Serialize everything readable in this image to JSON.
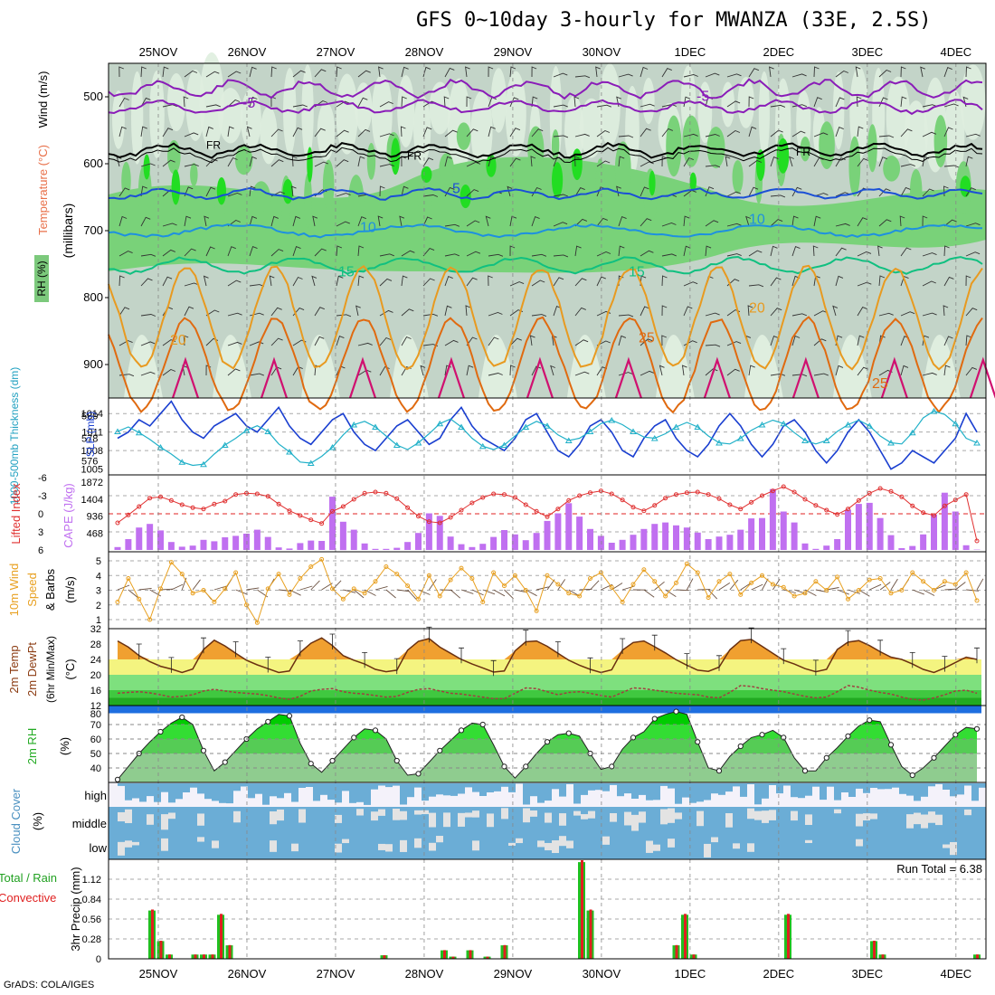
{
  "title": "GFS 0~10day 3-hourly for MWANZA (33E, 2.5S)",
  "credit": "GrADS: COLA/IGES",
  "chart_data": [
    {
      "panel": "upper-air",
      "type": "heatmap",
      "date_labels": [
        "25NOV",
        "26NOV",
        "27NOV",
        "28NOV",
        "29NOV",
        "30NOV",
        "1DEC",
        "2DEC",
        "3DEC",
        "4DEC"
      ],
      "ylabel_parts": [
        "RH (%)",
        "Temperature (°C)",
        "Wind (m/s)"
      ],
      "ylabel2": "(millibars)",
      "ytick_labels": [
        "500",
        "600",
        "700",
        "800",
        "900"
      ],
      "ylim": [
        450,
        950
      ],
      "contour_labels": [
        "-5",
        "-5",
        "FR",
        "FR",
        "FR",
        "5",
        "10",
        "10",
        "15",
        "15",
        "20",
        "20",
        "25",
        "25"
      ],
      "colors": {
        "rh_light": "#dfeedf",
        "rh_mid": "#c3d4c8",
        "rh_green": "#79d279",
        "rh_bright": "#22dd22",
        "minus5": "#8a1cb8",
        "freeze": "#000000",
        "t5": "#1a4fd6",
        "t10": "#1e90e0",
        "t15": "#10c080",
        "t20": "#e89a20",
        "t25": "#e06a10",
        "t30": "#d01070"
      }
    },
    {
      "panel": "thickness-slp",
      "type": "line",
      "ylabel_left": "1000-500mb Thickness (dm)",
      "ylabel_right": "SLP (mb)",
      "left_ticks": [
        "580",
        "578",
        "576"
      ],
      "right_ticks": [
        "1014",
        "1011",
        "1008",
        "1005"
      ],
      "series": [
        {
          "name": "SLP",
          "color": "#1a3fd0",
          "values": [
            1010,
            1011,
            1013,
            1012,
            1014,
            1016,
            1013,
            1011,
            1010,
            1012,
            1013,
            1014,
            1012,
            1011,
            1013,
            1015,
            1012,
            1010,
            1009,
            1011,
            1013,
            1014,
            1011,
            1009,
            1008,
            1010,
            1012,
            1013,
            1011,
            1009,
            1010,
            1013,
            1015,
            1012,
            1010,
            1009,
            1008,
            1010,
            1013,
            1014,
            1011,
            1008,
            1007,
            1009,
            1012,
            1013,
            1011,
            1008,
            1007,
            1010,
            1012,
            1013,
            1010,
            1008,
            1007,
            1009,
            1012,
            1014,
            1012,
            1009,
            1007,
            1009,
            1012,
            1013,
            1011,
            1008,
            1006,
            1008,
            1011,
            1013,
            1011,
            1008,
            1005,
            1006,
            1008,
            1007,
            1006,
            1008,
            1010,
            1014,
            1011
          ]
        },
        {
          "name": "Thickness",
          "color": "#20b0c8",
          "values": [
            578.6,
            579.0,
            578.5,
            577.9,
            577.2,
            576.6,
            575.9,
            575.6,
            575.7,
            576.6,
            577.4,
            578.0,
            578.7,
            579.1,
            578.6,
            577.5,
            576.8,
            575.9,
            575.8,
            576.4,
            577.2,
            578.3,
            579.2,
            579.5,
            579.0,
            578.2,
            577.4,
            577.0,
            577.6,
            578.4,
            579.3,
            579.7,
            579.0,
            578.0,
            577.3,
            577.0,
            577.4,
            578.2,
            579.0,
            579.5,
            579.1,
            578.3,
            577.8,
            578.0,
            578.6,
            579.3,
            579.6,
            579.2,
            578.6,
            578.1,
            578.0,
            578.4,
            579.0,
            579.4,
            579.0,
            578.2,
            577.6,
            577.5,
            578.0,
            578.7,
            579.2,
            579.6,
            579.3,
            578.5,
            577.8,
            577.5,
            577.8,
            578.6,
            579.2,
            579.6,
            579.1,
            578.2,
            577.6,
            577.5,
            578.5,
            579.8,
            580.4,
            580.1,
            579.3,
            578.0,
            577.6
          ]
        }
      ]
    },
    {
      "panel": "cape-li",
      "type": "bar",
      "ylabel_left": "Lifted Index",
      "ylabel_right": "CAPE (J/kg)",
      "left_ticks": [
        "-6",
        "-3",
        "0",
        "3",
        "6"
      ],
      "right_ticks": [
        "1872",
        "1404",
        "936",
        "468"
      ],
      "cape": [
        80,
        300,
        620,
        720,
        540,
        220,
        90,
        120,
        280,
        240,
        350,
        390,
        450,
        560,
        360,
        70,
        40,
        190,
        260,
        250,
        1470,
        780,
        560,
        180,
        30,
        30,
        60,
        220,
        470,
        1010,
        940,
        370,
        160,
        80,
        170,
        360,
        550,
        430,
        270,
        470,
        800,
        1010,
        1290,
        920,
        580,
        390,
        200,
        280,
        420,
        580,
        720,
        760,
        680,
        620,
        480,
        300,
        370,
        420,
        560,
        870,
        880,
        1680,
        1060,
        760,
        180,
        30,
        120,
        300,
        1110,
        1270,
        1300,
        880,
        410,
        50,
        110,
        430,
        980,
        1580,
        1060,
        130,
        10
      ],
      "lifted_index": [
        1.5,
        0.2,
        -1.2,
        -2.6,
        -2.8,
        -2.2,
        -1.5,
        -1.0,
        -0.8,
        -1.6,
        -2.1,
        -3.2,
        -3.4,
        -3.3,
        -2.9,
        -1.6,
        -0.5,
        0.3,
        1.0,
        1.6,
        -0.4,
        -1.2,
        -2.4,
        -3.4,
        -3.6,
        -3.4,
        -2.5,
        -1.0,
        0.4,
        1.3,
        1.5,
        0.6,
        -0.6,
        -1.8,
        -2.7,
        -3.3,
        -3.2,
        -2.7,
        -1.5,
        -0.4,
        0.5,
        -0.8,
        -2.2,
        -3.0,
        -3.5,
        -3.8,
        -3.3,
        -2.3,
        -1.1,
        -0.5,
        -1.4,
        -2.6,
        -3.2,
        -3.5,
        -3.6,
        -3.2,
        -2.5,
        -1.5,
        -0.8,
        -1.9,
        -3.0,
        -3.8,
        -4.5,
        -3.6,
        -2.4,
        -1.4,
        -0.6,
        0.1,
        -0.8,
        -2.2,
        -3.4,
        -4.2,
        -3.7,
        -2.8,
        -1.3,
        -0.2,
        0.3,
        -1.3,
        -2.3,
        -3.2,
        4.5
      ]
    },
    {
      "panel": "wind10m",
      "type": "line",
      "ylabel": "10m Wind Speed (m/s) & Barbs",
      "ylabel_parts": [
        "10m Wind",
        "Speed",
        "& Barbs",
        "(m/s)"
      ],
      "left_ticks": [
        "5",
        "4",
        "3",
        "2",
        "1"
      ],
      "values": [
        2.2,
        3.8,
        2.4,
        1.0,
        3.1,
        4.9,
        4.1,
        2.8,
        3.0,
        2.2,
        3.1,
        4.2,
        2.0,
        0.8,
        3.1,
        4.1,
        2.7,
        3.8,
        4.6,
        5.1,
        3.1,
        2.4,
        3.1,
        2.8,
        3.6,
        4.6,
        4.1,
        3.3,
        2.4,
        4.0,
        2.6,
        3.7,
        4.5,
        3.8,
        2.2,
        4.2,
        3.3,
        4.0,
        3.0,
        1.6,
        4.0,
        3.4,
        2.8,
        2.6,
        3.8,
        4.2,
        3.2,
        2.2,
        3.4,
        4.4,
        3.6,
        2.6,
        3.5,
        4.8,
        4.2,
        2.5,
        3.6,
        4.1,
        2.7,
        3.5,
        4.0,
        3.4,
        3.2,
        2.6,
        2.8,
        3.6,
        3.0,
        3.9,
        2.4,
        3.0,
        3.7,
        3.8,
        2.8,
        3.0,
        4.2,
        3.6,
        3.0,
        3.6,
        3.4,
        4.2,
        2.3
      ]
    },
    {
      "panel": "temp2m",
      "type": "area",
      "ylabel_parts": [
        "2m Temp",
        "2m DewPt",
        "(6hr Min/Max)",
        "(°C)"
      ],
      "left_ticks": [
        "32",
        "28",
        "24",
        "20",
        "16",
        "12"
      ],
      "temperature": [
        28.8,
        27.2,
        25.0,
        23.4,
        22.2,
        21.5,
        20.6,
        21.5,
        26.6,
        29.0,
        27.5,
        25.6,
        23.8,
        22.6,
        21.6,
        20.6,
        21.0,
        25.8,
        28.2,
        29.6,
        27.6,
        25.0,
        23.8,
        22.8,
        21.4,
        20.8,
        21.2,
        26.4,
        28.7,
        29.4,
        27.2,
        25.6,
        24.0,
        22.8,
        21.8,
        20.7,
        21.0,
        26.2,
        28.6,
        28.8,
        27.4,
        25.6,
        23.8,
        22.5,
        21.4,
        20.6,
        21.3,
        26.4,
        28.4,
        28.8,
        27.3,
        25.7,
        23.9,
        22.5,
        21.2,
        20.9,
        22.0,
        26.5,
        28.9,
        29.2,
        27.4,
        25.6,
        23.8,
        22.8,
        21.6,
        20.8,
        21.4,
        26.6,
        28.5,
        28.9,
        27.6,
        26.0,
        24.6,
        24.0,
        22.8,
        21.4,
        20.6,
        21.8,
        23.2,
        24.6,
        24.0
      ],
      "dewpoint": [
        15.2,
        15.4,
        15.6,
        15.3,
        14.8,
        14.2,
        14.4,
        14.8,
        15.8,
        16.2,
        15.8,
        15.4,
        15.2,
        15.0,
        14.6,
        14.0,
        13.6,
        14.4,
        15.8,
        16.2,
        16.4,
        15.6,
        15.2,
        15.0,
        14.6,
        14.2,
        14.4,
        15.4,
        16.2,
        16.4,
        15.8,
        15.2,
        15.0,
        14.6,
        14.2,
        13.8,
        13.8,
        15.2,
        16.6,
        16.4,
        15.6,
        14.8,
        15.4,
        15.6,
        15.2,
        14.6,
        14.2,
        15.4,
        16.6,
        16.4,
        16.0,
        15.6,
        15.2,
        15.0,
        14.8,
        14.2,
        14.0,
        15.4,
        17.2,
        17.0,
        16.4,
        16.0,
        15.6,
        15.0,
        14.4,
        14.0,
        14.2,
        15.6,
        17.2,
        16.8,
        16.0,
        15.4,
        15.0,
        14.2,
        13.6,
        13.4,
        14.0,
        14.8,
        15.8,
        16.0,
        15.2
      ]
    },
    {
      "panel": "rh2m",
      "type": "area",
      "ylabel": "2m RH",
      "unit": "(%)",
      "left_ticks": [
        "80",
        "70",
        "60",
        "50",
        "40"
      ],
      "values": [
        32,
        41,
        50,
        58,
        65,
        71,
        75,
        70,
        52,
        38,
        44,
        52,
        60,
        67,
        72,
        77,
        76,
        57,
        43,
        37,
        45,
        53,
        61,
        67,
        66,
        60,
        45,
        35,
        36,
        44,
        52,
        59,
        66,
        71,
        70,
        56,
        41,
        33,
        41,
        50,
        58,
        63,
        64,
        62,
        50,
        39,
        41,
        53,
        61,
        65,
        74,
        77,
        79,
        77,
        58,
        40,
        38,
        48,
        55,
        61,
        63,
        66,
        61,
        47,
        38,
        38,
        47,
        54,
        62,
        69,
        73,
        72,
        56,
        41,
        35,
        40,
        47,
        55,
        63,
        68,
        67
      ]
    },
    {
      "panel": "cloud",
      "type": "bar",
      "ylabel": "Cloud Cover",
      "unit": "(%)",
      "row_labels": [
        "high",
        "middle",
        "low"
      ],
      "colors": {
        "sky": "#6badd6",
        "clear": "#f4f2fa",
        "gray": "#e3e3e3"
      }
    },
    {
      "panel": "precip",
      "type": "bar",
      "ylabel": "3hr Precip (mm)",
      "legend": [
        "Total / Rain",
        "Convective"
      ],
      "run_total_label": "Run Total = 6.38",
      "left_ticks": [
        "1.12",
        "0.84",
        "0.56",
        "0.28",
        "0"
      ],
      "x_labels": [
        "25NOV",
        "26NOV",
        "27NOV",
        "28NOV",
        "29NOV",
        "30NOV",
        "1DEC",
        "2DEC",
        "3DEC",
        "4DEC"
      ],
      "total": [
        0,
        0,
        0,
        0,
        0.68,
        0.25,
        0.06,
        0,
        0,
        0.06,
        0.06,
        0.06,
        0.62,
        0.19,
        0,
        0,
        0,
        0,
        0,
        0,
        0,
        0,
        0,
        0,
        0,
        0,
        0,
        0,
        0,
        0,
        0,
        0.05,
        0,
        0,
        0,
        0,
        0,
        0,
        0.12,
        0.03,
        0,
        0.12,
        0,
        0.03,
        0,
        0.19,
        0,
        0,
        0,
        0,
        0,
        0,
        0,
        0,
        1.36,
        0.68,
        0,
        0,
        0,
        0,
        0,
        0,
        0,
        0,
        0,
        0.19,
        0.62,
        0.06,
        0,
        0,
        0,
        0,
        0,
        0,
        0,
        0,
        0,
        0,
        0.62,
        0,
        0,
        0,
        0,
        0,
        0,
        0,
        0,
        0,
        0.25,
        0.06,
        0,
        0,
        0,
        0,
        0,
        0,
        0,
        0,
        0,
        0,
        0.06
      ]
    }
  ]
}
